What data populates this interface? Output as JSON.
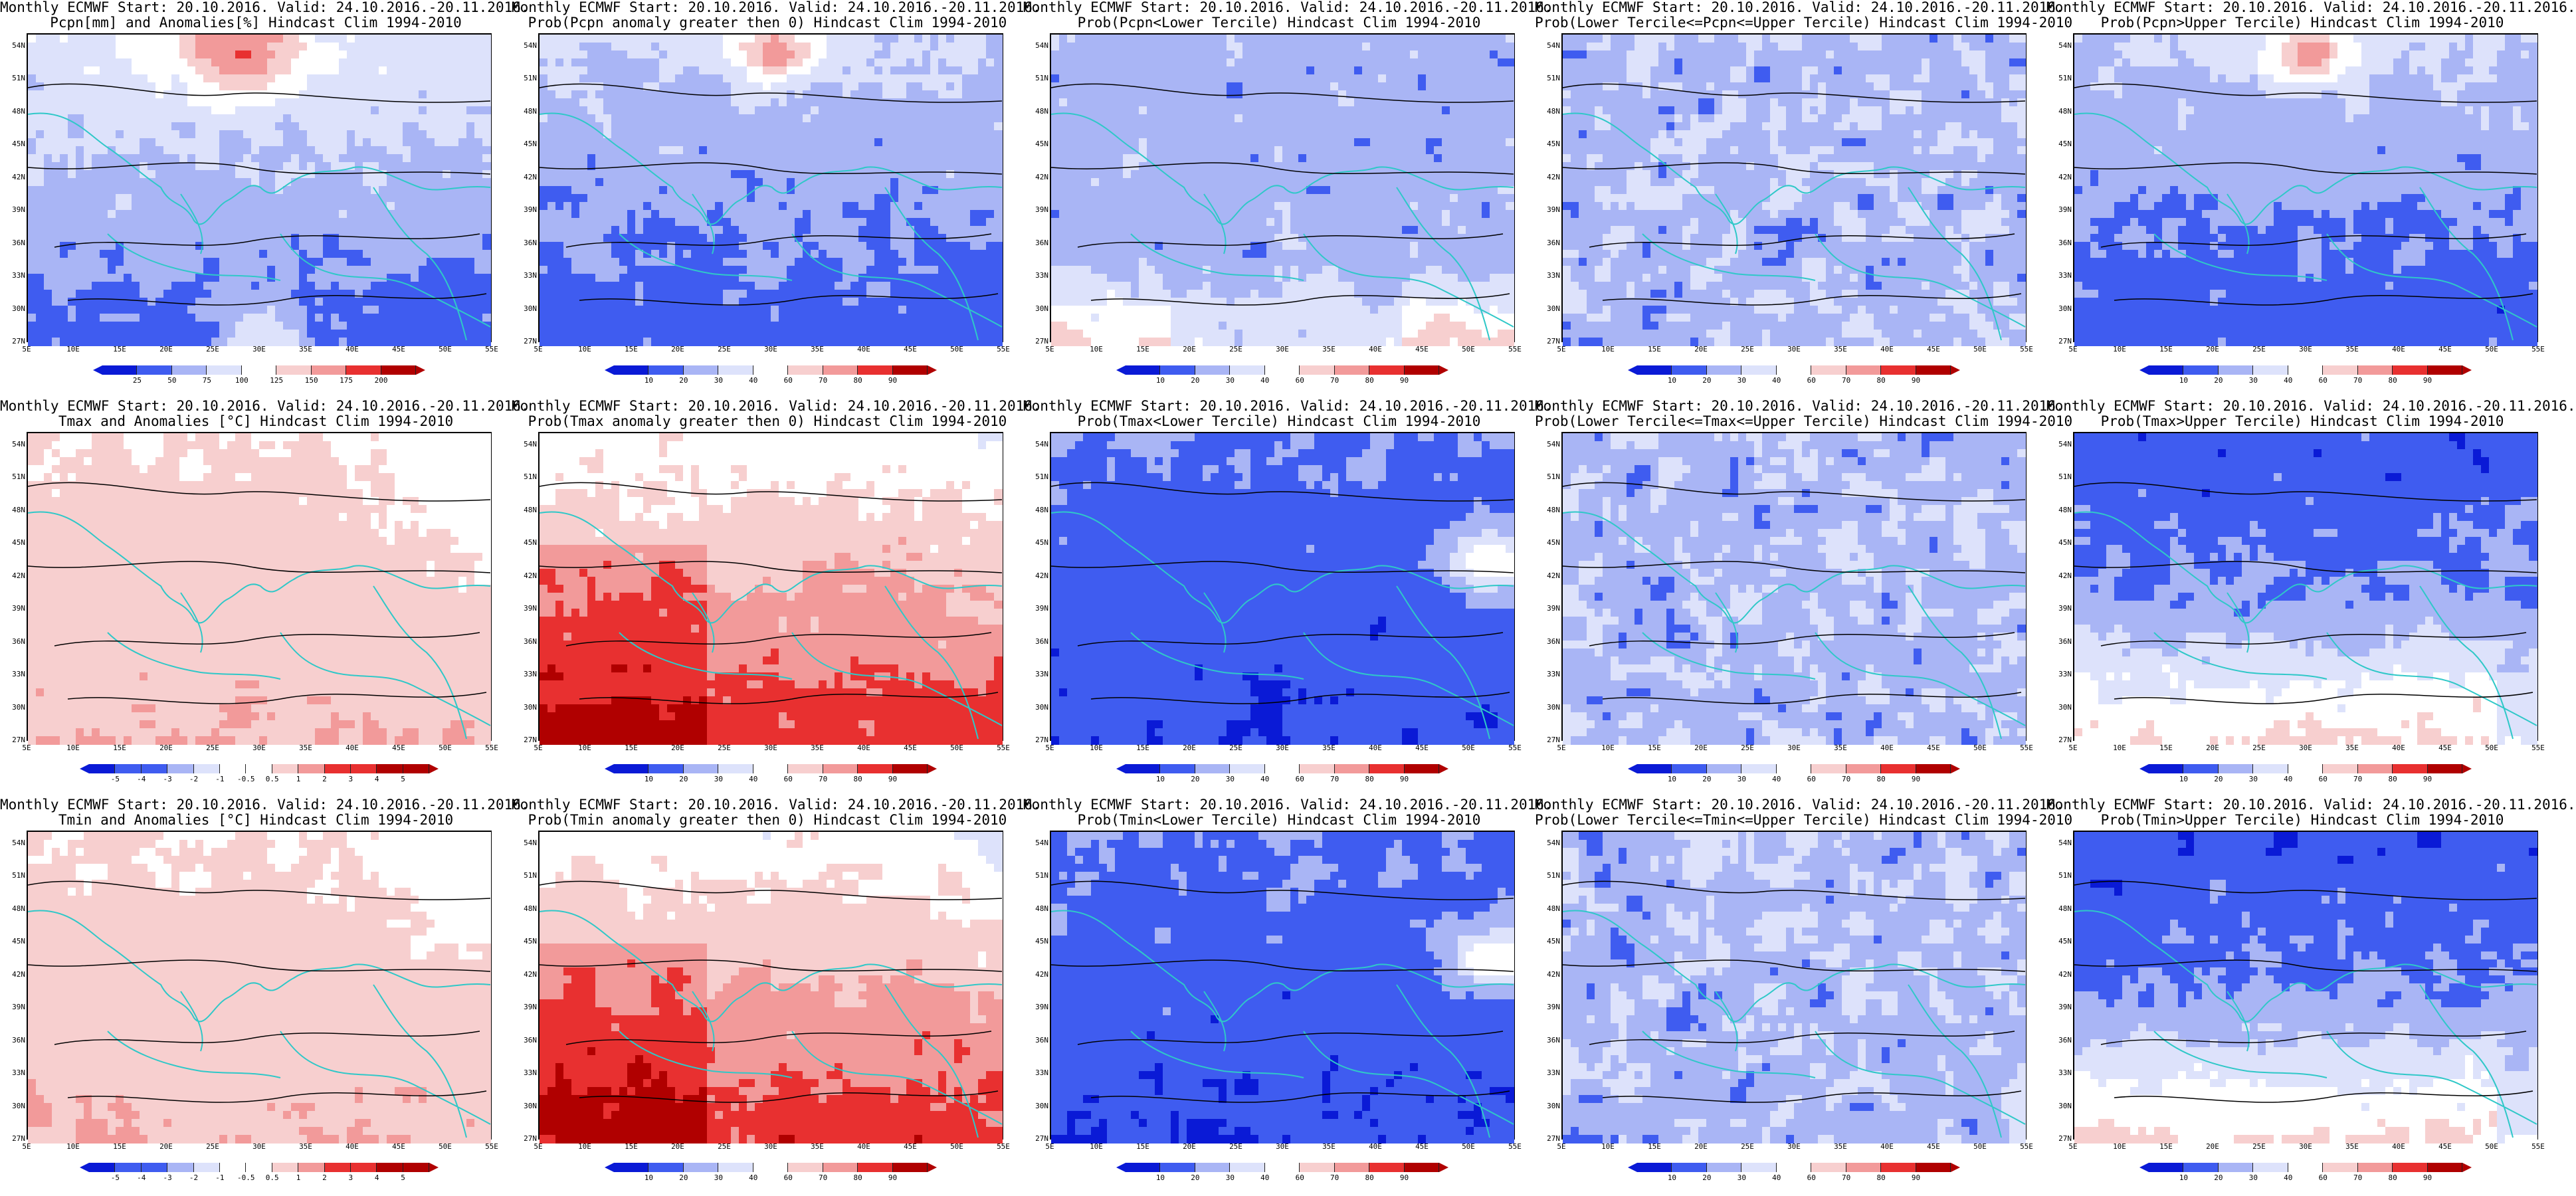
{
  "common": {
    "lat_labels": [
      "54N",
      "51N",
      "48N",
      "45N",
      "42N",
      "39N",
      "36N",
      "33N",
      "30N",
      "27N"
    ],
    "lon_labels": [
      "5E",
      "10E",
      "15E",
      "20E",
      "25E",
      "30E",
      "35E",
      "40E",
      "45E",
      "50E",
      "55E"
    ],
    "colors": {
      "coast": "#2fc8c8",
      "contour": "#000000",
      "deep_blue": "#0a1ad6",
      "blue": "#3f5cf0",
      "light_blue": "#a9b5f5",
      "pale_blue": "#dde2fb",
      "white": "#ffffff",
      "pale_red": "#f7cfcf",
      "light_red": "#f29a9a",
      "red": "#e83030",
      "deep_red": "#b00000"
    }
  },
  "colorbars": {
    "pcpn_anom": {
      "labels": [
        "25",
        "50",
        "75",
        "100",
        "125",
        "150",
        "175",
        "200"
      ]
    },
    "prob": {
      "labels": [
        "10",
        "20",
        "30",
        "40",
        "60",
        "70",
        "80",
        "90"
      ]
    },
    "temp_anom": {
      "labels": [
        "-5",
        "-4",
        "-3",
        "-2",
        "-1",
        "-0.5",
        "0.5",
        "1",
        "2",
        "3",
        "4",
        "5"
      ]
    }
  },
  "panels": [
    {
      "line1": "Monthly ECMWF Start: 20.10.2016. Valid: 24.10.2016.-20.11.2016.",
      "line2": "Pcpn[mm] and Anomalies[%] Hindcast Clim 1994-2010",
      "bar": "pcpn_anom",
      "theme": "pcpn_mix"
    },
    {
      "line1": "Monthly ECMWF Start: 20.10.2016. Valid: 24.10.2016.-20.11.2016.",
      "line2": "Prob(Pcpn anomaly greater then 0) Hindcast Clim 1994-2010",
      "bar": "prob",
      "theme": "blue_mostly"
    },
    {
      "line1": "Monthly ECMWF Start: 20.10.2016. Valid: 24.10.2016.-20.11.2016.",
      "line2": "Prob(Pcpn<Lower Tercile) Hindcast Clim 1994-2010",
      "bar": "prob",
      "theme": "blue_south_red"
    },
    {
      "line1": "Monthly ECMWF Start: 20.10.2016. Valid: 24.10.2016.-20.11.2016.",
      "line2": "Prob(Lower Tercile<=Pcpn<=Upper Tercile) Hindcast Clim 1994-2010",
      "bar": "prob",
      "theme": "blue_mottled"
    },
    {
      "line1": "Monthly ECMWF Start: 20.10.2016. Valid: 24.10.2016.-20.11.2016.",
      "line2": "Prob(Pcpn>Upper Tercile) Hindcast Clim 1994-2010",
      "bar": "prob",
      "theme": "blue_mostly"
    },
    {
      "line1": "Monthly ECMWF Start: 20.10.2016. Valid: 24.10.2016.-20.11.2016.",
      "line2": "Tmax and Anomalies [°C] Hindcast Clim 1994-2010",
      "bar": "temp_anom",
      "theme": "pale_red"
    },
    {
      "line1": "Monthly ECMWF Start: 20.10.2016. Valid: 24.10.2016.-20.11.2016.",
      "line2": "Prob(Tmax anomaly greater then 0) Hindcast Clim 1994-2010",
      "bar": "prob",
      "theme": "red_south"
    },
    {
      "line1": "Monthly ECMWF Start: 20.10.2016. Valid: 24.10.2016.-20.11.2016.",
      "line2": "Prob(Tmax<Lower Tercile) Hindcast Clim 1994-2010",
      "bar": "prob",
      "theme": "deep_blue"
    },
    {
      "line1": "Monthly ECMWF Start: 20.10.2016. Valid: 24.10.2016.-20.11.2016.",
      "line2": "Prob(Lower Tercile<=Tmax<=Upper Tercile) Hindcast Clim 1994-2010",
      "bar": "prob",
      "theme": "blue_mottled"
    },
    {
      "line1": "Monthly ECMWF Start: 20.10.2016. Valid: 24.10.2016.-20.11.2016.",
      "line2": "Prob(Tmax>Upper Tercile) Hindcast Clim 1994-2010",
      "bar": "prob",
      "theme": "blue_north_red_south"
    },
    {
      "line1": "Monthly ECMWF Start: 20.10.2016. Valid: 24.10.2016.-20.11.2016.",
      "line2": "Tmin and Anomalies [°C] Hindcast Clim 1994-2010",
      "bar": "temp_anom",
      "theme": "pale_red"
    },
    {
      "line1": "Monthly ECMWF Start: 20.10.2016. Valid: 24.10.2016.-20.11.2016.",
      "line2": "Prob(Tmin anomaly greater then 0) Hindcast Clim 1994-2010",
      "bar": "prob",
      "theme": "red_south"
    },
    {
      "line1": "Monthly ECMWF Start: 20.10.2016. Valid: 24.10.2016.-20.11.2016.",
      "line2": "Prob(Tmin<Lower Tercile) Hindcast Clim 1994-2010",
      "bar": "prob",
      "theme": "deep_blue"
    },
    {
      "line1": "Monthly ECMWF Start: 20.10.2016. Valid: 24.10.2016.-20.11.2016.",
      "line2": "Prob(Lower Tercile<=Tmin<=Upper Tercile) Hindcast Clim 1994-2010",
      "bar": "prob",
      "theme": "blue_mottled"
    },
    {
      "line1": "Monthly ECMWF Start: 20.10.2016. Valid: 24.10.2016.-20.11.2016.",
      "line2": "Prob(Tmin>Upper Tercile) Hindcast Clim 1994-2010",
      "bar": "prob",
      "theme": "blue_north_red_south"
    }
  ]
}
